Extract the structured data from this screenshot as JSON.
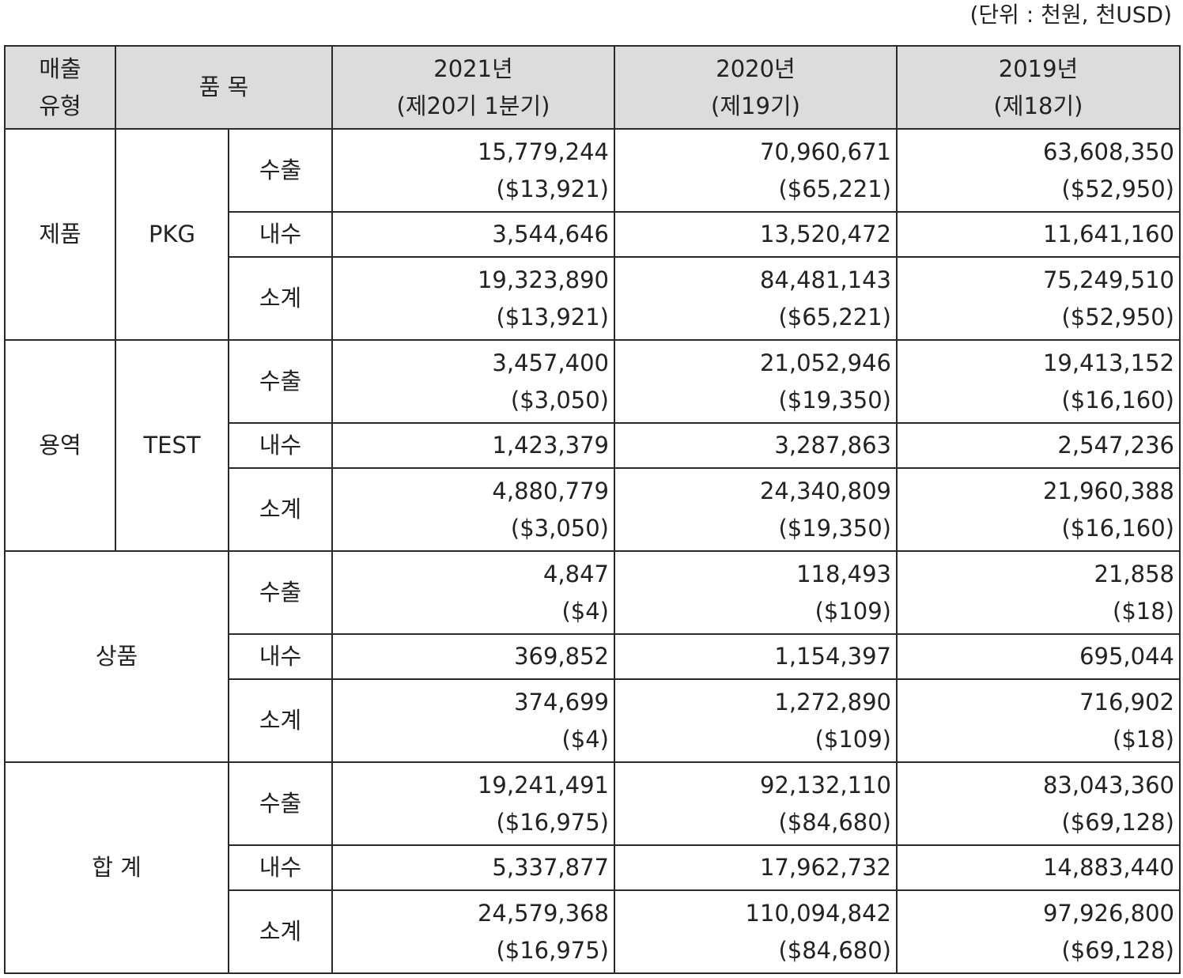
{
  "unit_note": "(단위 : 천원, 천USD)",
  "headers": {
    "sales_type": [
      "매출",
      "유형"
    ],
    "item": "품 목",
    "y2021": [
      "2021년",
      "(제20기 1분기)"
    ],
    "y2020": [
      "2020년",
      "(제19기)"
    ],
    "y2019": [
      "2019년",
      "(제18기)"
    ]
  },
  "groups": [
    {
      "type": "제품",
      "item": "PKG",
      "rows": [
        {
          "label": "수출",
          "v2021": [
            "15,779,244",
            "($13,921)"
          ],
          "v2020": [
            "70,960,671",
            "($65,221)"
          ],
          "v2019": [
            "63,608,350",
            "($52,950)"
          ]
        },
        {
          "label": "내수",
          "v2021": [
            "3,544,646"
          ],
          "v2020": [
            "13,520,472"
          ],
          "v2019": [
            "11,641,160"
          ]
        },
        {
          "label": "소계",
          "v2021": [
            "19,323,890",
            "($13,921)"
          ],
          "v2020": [
            "84,481,143",
            "($65,221)"
          ],
          "v2019": [
            "75,249,510",
            "($52,950)"
          ]
        }
      ]
    },
    {
      "type": "용역",
      "item": "TEST",
      "rows": [
        {
          "label": "수출",
          "v2021": [
            "3,457,400",
            "($3,050)"
          ],
          "v2020": [
            "21,052,946",
            "($19,350)"
          ],
          "v2019": [
            "19,413,152",
            "($16,160)"
          ]
        },
        {
          "label": "내수",
          "v2021": [
            "1,423,379"
          ],
          "v2020": [
            "3,287,863"
          ],
          "v2019": [
            "2,547,236"
          ]
        },
        {
          "label": "소계",
          "v2021": [
            "4,880,779",
            "($3,050)"
          ],
          "v2020": [
            "24,340,809",
            "($19,350)"
          ],
          "v2019": [
            "21,960,388",
            "($16,160)"
          ]
        }
      ]
    },
    {
      "type": "상품",
      "rows": [
        {
          "label": "수출",
          "v2021": [
            "4,847",
            "($4)"
          ],
          "v2020": [
            "118,493",
            "($109)"
          ],
          "v2019": [
            "21,858",
            "($18)"
          ]
        },
        {
          "label": "내수",
          "v2021": [
            "369,852"
          ],
          "v2020": [
            "1,154,397"
          ],
          "v2019": [
            "695,044"
          ]
        },
        {
          "label": "소계",
          "v2021": [
            "374,699",
            "($4)"
          ],
          "v2020": [
            "1,272,890",
            "($109)"
          ],
          "v2019": [
            "716,902",
            "($18)"
          ]
        }
      ]
    },
    {
      "type": "합 계",
      "rows": [
        {
          "label": "수출",
          "v2021": [
            "19,241,491",
            "($16,975)"
          ],
          "v2020": [
            "92,132,110",
            "($84,680)"
          ],
          "v2019": [
            "83,043,360",
            "($69,128)"
          ]
        },
        {
          "label": "내수",
          "v2021": [
            "5,337,877"
          ],
          "v2020": [
            "17,962,732"
          ],
          "v2019": [
            "14,883,440"
          ]
        },
        {
          "label": "소계",
          "v2021": [
            "24,579,368",
            "($16,975)"
          ],
          "v2020": [
            "110,094,842",
            "($84,680)"
          ],
          "v2019": [
            "97,926,800",
            "($69,128)"
          ]
        }
      ]
    }
  ]
}
